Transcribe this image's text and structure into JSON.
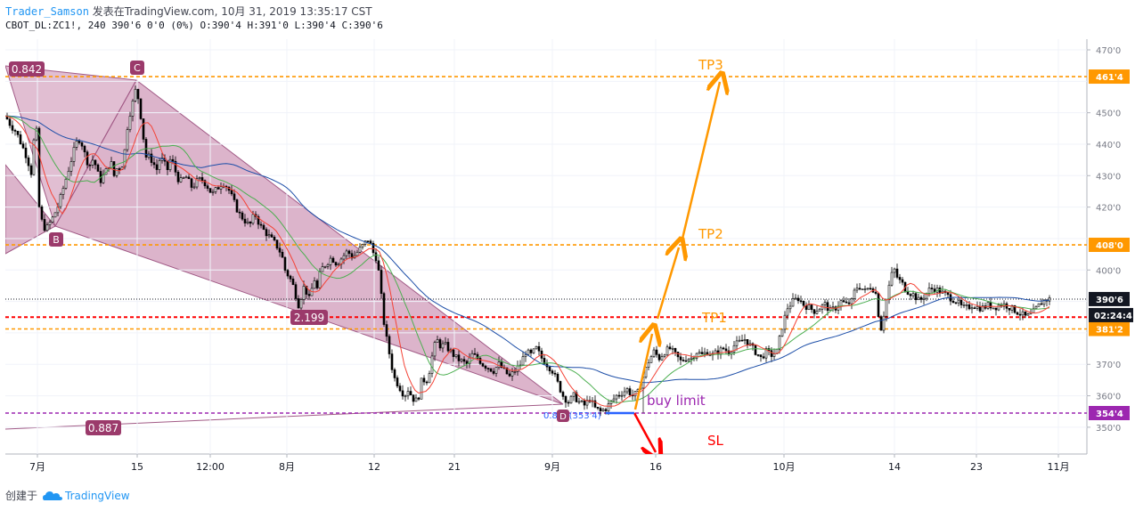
{
  "header": {
    "author": "Trader_Samson",
    "published": "发表在TradingView.com, 10月 31, 2019 13:35:17 CST",
    "symbol_line": "CBOT_DL:ZC1!, 240 390'6 0'0 (0%) O:390'4 H:391'0 L:390'4 C:390'6"
  },
  "footer": {
    "created_with": "创建于",
    "brand": "TradingView"
  },
  "chart_data": {
    "type": "candlestick",
    "y_unit": "cents/bushel (eighths notation)",
    "price_axis_labels": [
      "470'0",
      "450'0",
      "440'0",
      "430'0",
      "420'0",
      "400'0",
      "370'0",
      "360'0",
      "350'0"
    ],
    "time_axis_labels": [
      "7月",
      "15",
      "12:00",
      "8月",
      "12",
      "21",
      "9月",
      "16",
      "10月",
      "14",
      "23",
      "11月"
    ],
    "horizontal_lines": [
      {
        "label": "461'4",
        "value": 461.5,
        "color": "#ff9800"
      },
      {
        "label": "408'0",
        "value": 408.0,
        "color": "#ff9800"
      },
      {
        "label": "385'0",
        "value": 385.0,
        "color": "#ff0000"
      },
      {
        "label": "381'2",
        "value": 381.25,
        "color": "#ff9800"
      },
      {
        "label": "354'4",
        "value": 354.5,
        "color": "#9c27b0"
      }
    ],
    "last_price": {
      "label": "390'6",
      "value": 390.75,
      "countdown": "02:24:4"
    },
    "pattern_labels": {
      "C": "C",
      "B": "B",
      "D": "D"
    },
    "fib_ratios": [
      "0.842",
      "2.199",
      "0.887"
    ],
    "annotations": [
      "TP3",
      "TP2",
      "TP1",
      "buy limit",
      "SL"
    ],
    "fib_small_text": "0.888(353'4)",
    "close_path": [
      [
        0,
        450
      ],
      [
        6,
        449
      ],
      [
        12,
        446
      ],
      [
        18,
        444
      ],
      [
        24,
        440
      ],
      [
        30,
        436
      ],
      [
        36,
        430
      ],
      [
        40,
        452
      ],
      [
        44,
        420
      ],
      [
        48,
        414
      ],
      [
        52,
        413
      ],
      [
        56,
        415
      ],
      [
        60,
        417
      ],
      [
        66,
        421
      ],
      [
        72,
        427
      ],
      [
        78,
        433
      ],
      [
        84,
        439
      ],
      [
        88,
        442
      ],
      [
        92,
        440
      ],
      [
        96,
        436
      ],
      [
        100,
        433
      ],
      [
        104,
        435
      ],
      [
        108,
        433
      ],
      [
        112,
        428
      ],
      [
        116,
        430
      ],
      [
        120,
        432
      ],
      [
        124,
        435
      ],
      [
        128,
        430
      ],
      [
        132,
        433
      ],
      [
        136,
        432
      ],
      [
        140,
        438
      ],
      [
        144,
        448
      ],
      [
        148,
        452
      ],
      [
        152,
        457
      ],
      [
        156,
        454
      ],
      [
        160,
        444
      ],
      [
        164,
        436
      ],
      [
        168,
        436
      ],
      [
        172,
        434
      ],
      [
        176,
        432
      ],
      [
        180,
        436
      ],
      [
        184,
        434
      ],
      [
        188,
        432
      ],
      [
        192,
        436
      ],
      [
        196,
        432
      ],
      [
        200,
        429
      ],
      [
        204,
        428
      ],
      [
        208,
        430
      ],
      [
        212,
        428
      ],
      [
        216,
        426
      ],
      [
        220,
        428
      ],
      [
        226,
        429
      ],
      [
        232,
        427
      ],
      [
        238,
        424
      ],
      [
        244,
        426
      ],
      [
        250,
        428
      ],
      [
        256,
        426
      ],
      [
        262,
        422
      ],
      [
        268,
        418
      ],
      [
        274,
        416
      ],
      [
        280,
        414
      ],
      [
        286,
        418
      ],
      [
        292,
        414
      ],
      [
        298,
        412
      ],
      [
        304,
        410
      ],
      [
        310,
        408
      ],
      [
        316,
        405
      ],
      [
        320,
        400
      ],
      [
        324,
        398
      ],
      [
        328,
        396
      ],
      [
        332,
        392
      ],
      [
        336,
        388
      ],
      [
        340,
        395
      ],
      [
        344,
        393
      ],
      [
        348,
        390
      ],
      [
        352,
        398
      ],
      [
        356,
        394
      ],
      [
        360,
        400
      ],
      [
        366,
        402
      ],
      [
        372,
        404
      ],
      [
        378,
        402
      ],
      [
        384,
        404
      ],
      [
        390,
        406
      ],
      [
        396,
        404
      ],
      [
        402,
        406
      ],
      [
        408,
        408
      ],
      [
        414,
        410
      ],
      [
        418,
        406
      ],
      [
        422,
        404
      ],
      [
        426,
        398
      ],
      [
        430,
        385
      ],
      [
        434,
        378
      ],
      [
        438,
        372
      ],
      [
        442,
        366
      ],
      [
        446,
        364
      ],
      [
        450,
        362
      ],
      [
        454,
        360
      ],
      [
        458,
        362
      ],
      [
        462,
        360
      ],
      [
        466,
        358
      ],
      [
        470,
        360
      ],
      [
        474,
        366
      ],
      [
        478,
        364
      ],
      [
        482,
        368
      ],
      [
        486,
        374
      ],
      [
        490,
        378
      ],
      [
        494,
        376
      ],
      [
        500,
        376
      ],
      [
        506,
        374
      ],
      [
        512,
        372
      ],
      [
        518,
        371
      ],
      [
        524,
        370
      ],
      [
        530,
        373
      ],
      [
        536,
        372
      ],
      [
        542,
        370
      ],
      [
        548,
        369
      ],
      [
        554,
        368
      ],
      [
        560,
        370
      ],
      [
        566,
        368
      ],
      [
        572,
        366
      ],
      [
        578,
        368
      ],
      [
        584,
        370
      ],
      [
        590,
        374
      ],
      [
        596,
        373
      ],
      [
        602,
        375
      ],
      [
        608,
        372
      ],
      [
        614,
        370
      ],
      [
        620,
        368
      ],
      [
        626,
        364
      ],
      [
        632,
        360
      ],
      [
        638,
        358
      ],
      [
        644,
        360
      ],
      [
        650,
        358
      ],
      [
        656,
        357
      ],
      [
        662,
        359
      ],
      [
        668,
        356
      ],
      [
        674,
        355
      ],
      [
        680,
        356
      ],
      [
        686,
        358
      ],
      [
        692,
        360
      ],
      [
        698,
        361
      ],
      [
        704,
        362
      ],
      [
        710,
        360
      ],
      [
        716,
        361
      ],
      [
        722,
        366
      ],
      [
        728,
        371
      ],
      [
        734,
        374
      ],
      [
        740,
        372
      ],
      [
        746,
        374
      ],
      [
        752,
        375
      ],
      [
        758,
        373
      ],
      [
        764,
        371
      ],
      [
        770,
        372
      ],
      [
        776,
        372
      ],
      [
        782,
        374
      ],
      [
        788,
        373
      ],
      [
        794,
        374
      ],
      [
        800,
        373
      ],
      [
        806,
        374
      ],
      [
        812,
        375
      ],
      [
        818,
        374
      ],
      [
        824,
        376
      ],
      [
        830,
        377
      ],
      [
        836,
        378
      ],
      [
        842,
        376
      ],
      [
        848,
        374
      ],
      [
        854,
        372
      ],
      [
        860,
        374
      ],
      [
        866,
        373
      ],
      [
        872,
        374
      ],
      [
        878,
        382
      ],
      [
        884,
        388
      ],
      [
        890,
        390
      ],
      [
        896,
        391
      ],
      [
        902,
        389
      ],
      [
        908,
        388
      ],
      [
        914,
        387
      ],
      [
        920,
        388
      ],
      [
        926,
        389
      ],
      [
        932,
        387
      ],
      [
        938,
        388
      ],
      [
        944,
        390
      ],
      [
        950,
        389
      ],
      [
        956,
        390
      ],
      [
        960,
        394
      ],
      [
        964,
        395
      ],
      [
        968,
        394
      ],
      [
        972,
        393
      ],
      [
        976,
        395
      ],
      [
        980,
        394
      ],
      [
        984,
        392
      ],
      [
        988,
        380
      ],
      [
        992,
        386
      ],
      [
        996,
        392
      ],
      [
        1000,
        398
      ],
      [
        1004,
        400
      ],
      [
        1008,
        397
      ],
      [
        1012,
        396
      ],
      [
        1016,
        394
      ],
      [
        1020,
        393
      ],
      [
        1026,
        392
      ],
      [
        1032,
        390
      ],
      [
        1038,
        392
      ],
      [
        1044,
        394
      ],
      [
        1050,
        394
      ],
      [
        1056,
        393
      ],
      [
        1062,
        392
      ],
      [
        1068,
        391
      ],
      [
        1074,
        390
      ],
      [
        1080,
        388
      ],
      [
        1086,
        388
      ],
      [
        1092,
        389
      ],
      [
        1098,
        388
      ],
      [
        1104,
        388
      ],
      [
        1110,
        389
      ],
      [
        1116,
        388
      ],
      [
        1122,
        389
      ],
      [
        1128,
        389
      ],
      [
        1134,
        388
      ],
      [
        1140,
        387
      ],
      [
        1146,
        386
      ],
      [
        1152,
        385
      ],
      [
        1158,
        386
      ],
      [
        1164,
        388
      ],
      [
        1170,
        390
      ],
      [
        1176,
        390.75
      ]
    ]
  }
}
